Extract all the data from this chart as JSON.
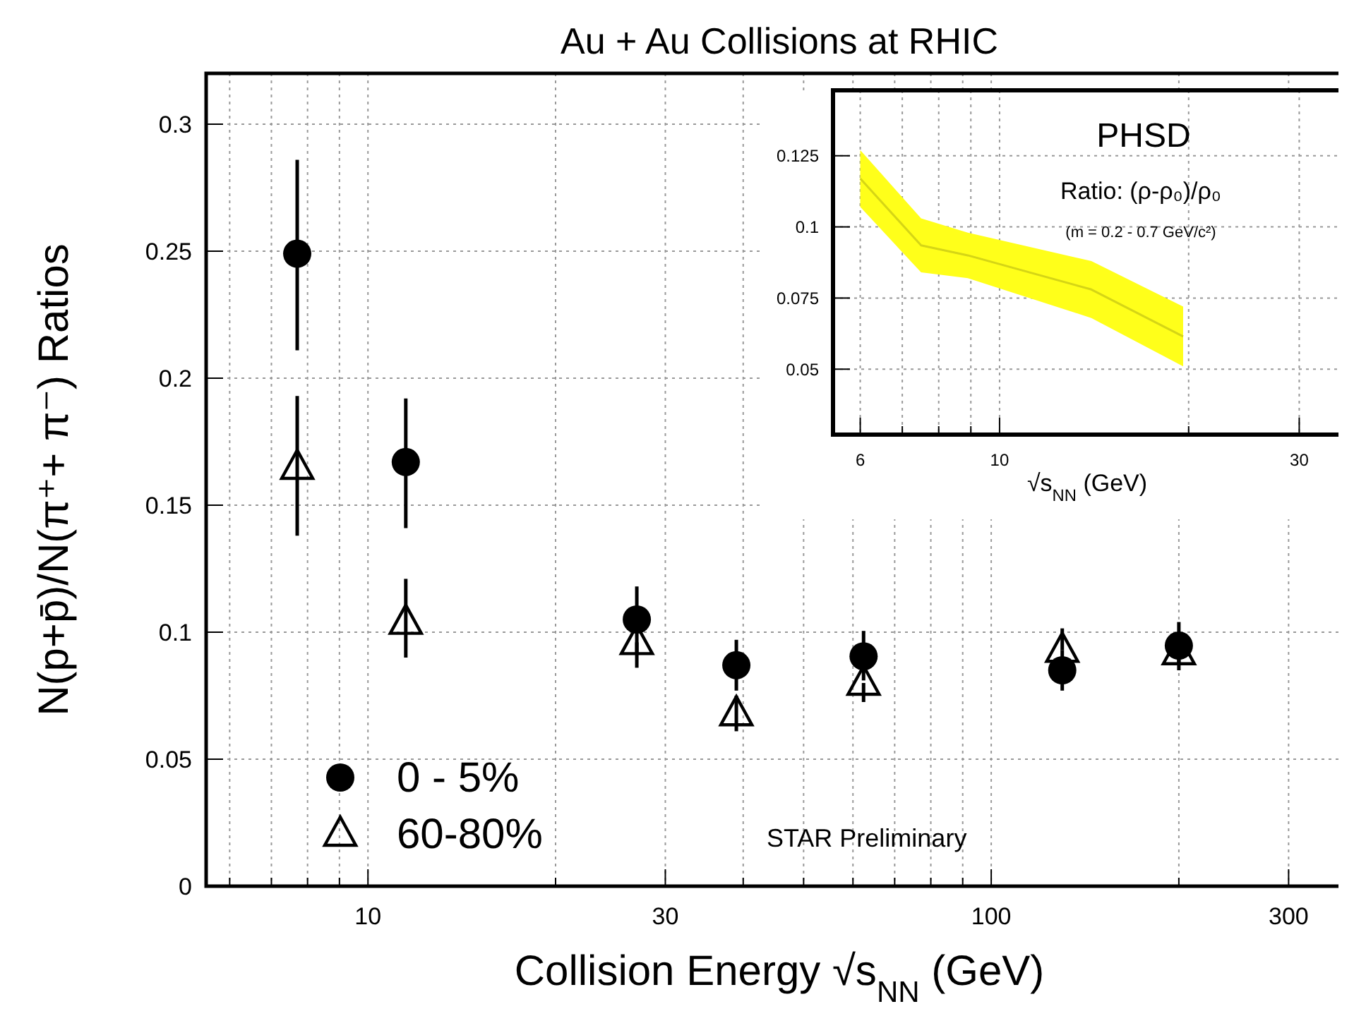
{
  "chart_data": [
    {
      "type": "scatter",
      "title": "Au + Au Collisions at RHIC",
      "xlabel": "Collision Energy √s$_{NN}$ (GeV)",
      "ylabel": "N(p+p̄)/N(π⁺+ π⁻) Ratios",
      "log": "x",
      "x": [
        7.7,
        11.5,
        27,
        39,
        62.4,
        130,
        200
      ],
      "series": [
        {
          "name": "0 - 5%",
          "color": "#000000",
          "marker": "circle",
          "values": [
            0.249,
            0.167,
            0.105,
            0.087,
            0.0905,
            0.085,
            0.0947
          ],
          "errors": [
            [
              0.211,
              0.286
            ],
            [
              0.141,
              0.192
            ],
            [
              0.092,
              0.118
            ],
            [
              0.077,
              0.097
            ],
            [
              0.081,
              0.1005
            ],
            [
              0.077,
              0.093
            ],
            [
              0.085,
              0.104
            ]
          ]
        },
        {
          "name": "60-80%",
          "color": "#000000",
          "marker": "triangle",
          "values": [
            0.165,
            0.104,
            0.096,
            0.068,
            0.08,
            0.093,
            0.092
          ],
          "errors": [
            [
              0.138,
              0.193
            ],
            [
              0.09,
              0.121
            ],
            [
              0.086,
              0.096
            ],
            [
              0.061,
              0.075
            ],
            [
              0.0725,
              0.08
            ],
            [
              0.093,
              0.1015
            ],
            [
              0.087,
              0.092
            ]
          ]
        }
      ],
      "xlim": [
        5.5,
        380
      ],
      "xticks": [
        {
          "value": 6,
          "label": null
        },
        {
          "value": 7,
          "label": null
        },
        {
          "value": 8,
          "label": null
        },
        {
          "value": 9,
          "label": null
        },
        10,
        {
          "value": 20,
          "label": null
        },
        30,
        {
          "value": 40,
          "label": null
        },
        {
          "value": 50,
          "label": null
        },
        {
          "value": 60,
          "label": null
        },
        {
          "value": 70,
          "label": null
        },
        {
          "value": 80,
          "label": null
        },
        {
          "value": 90,
          "label": null
        },
        100,
        {
          "value": 200,
          "label": null
        },
        300
      ],
      "ylim": [
        0,
        0.32
      ],
      "yticks": [
        0,
        0.05,
        0.1,
        0.15,
        0.2,
        0.25,
        0.3
      ],
      "grid": true,
      "legend": "bottom left",
      "annotations": [
        "STAR Preliminary"
      ]
    },
    {
      "type": "line",
      "title": "PHSD",
      "xlabel": "√s$_{NN}$ (GeV)",
      "log": "x",
      "x": [
        6,
        7.5,
        8.9,
        14,
        19.6
      ],
      "series": [
        {
          "color": "#d5d516",
          "values": [
            0.117,
            0.0935,
            0.09,
            0.078,
            0.0615
          ],
          "lower": [
            0.107,
            0.084,
            0.082,
            0.068,
            0.051
          ],
          "upper": [
            0.127,
            0.103,
            0.098,
            0.088,
            0.072
          ]
        }
      ],
      "xlim": [
        5.43,
        35
      ],
      "xticks": [
        6,
        {
          "value": 7,
          "label": null
        },
        {
          "value": 8,
          "label": null
        },
        {
          "value": 9,
          "label": null
        },
        10,
        {
          "value": 20,
          "label": null
        },
        30
      ],
      "ylim": [
        0.027,
        0.148
      ],
      "yticks": [
        0.05,
        0.075,
        0.1,
        0.125
      ],
      "grid": true,
      "annotations": [
        "Ratio: (ρ-ρ₀)/ρ₀",
        "(m = 0.2 - 0.7 GeV/c²)"
      ]
    }
  ]
}
